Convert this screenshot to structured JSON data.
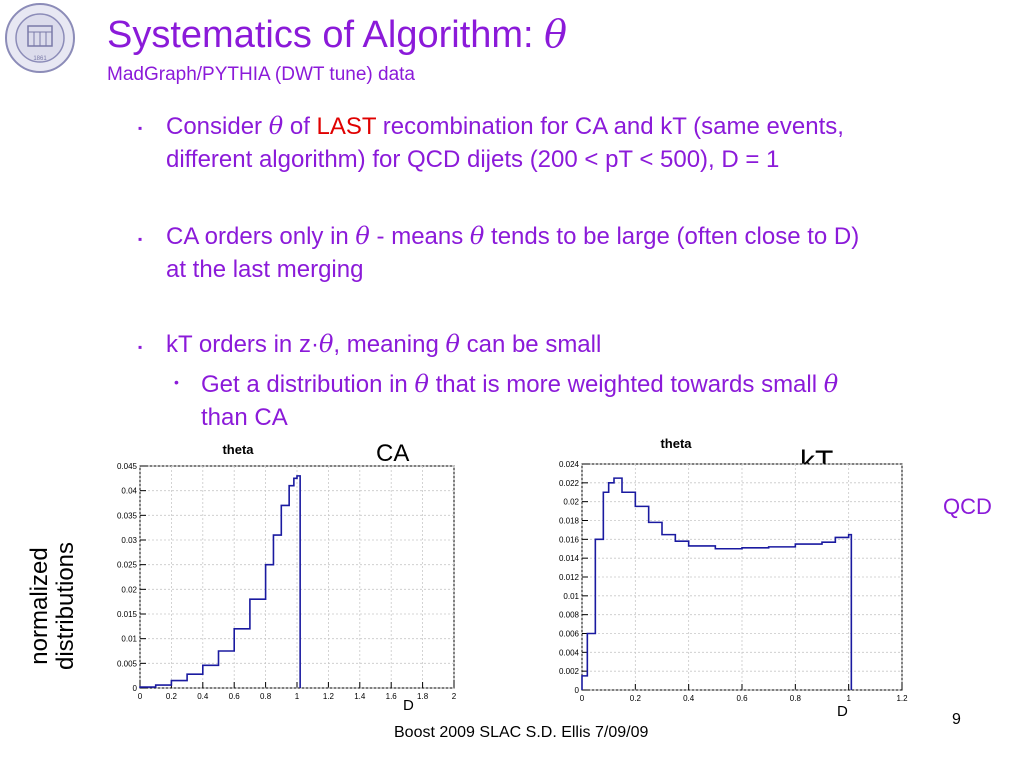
{
  "slide": {
    "title_text": "Systematics of Algorithm: ",
    "title_symbol": "θ",
    "subtitle": "MadGraph/PYTHIA (DWT tune) data",
    "bullets": [
      {
        "pre": "Consider ",
        "sym": "θ",
        "mid": " of ",
        "red": "LAST",
        "post": " recombination for CA and kT (same events,",
        "line2": "different algorithm) for QCD dijets (200 < pT < 500), D = 1"
      },
      {
        "pre": "CA orders only in ",
        "sym": "θ",
        "mid": " - means ",
        "sym2": "θ",
        "post": " tends to be large (often close to D)",
        "line2": "at the last merging"
      },
      {
        "pre": "kT orders in z·",
        "sym": "θ",
        "mid": ", meaning ",
        "sym2": "θ",
        "post": " can be small"
      }
    ],
    "sub_bullet": {
      "pre": "Get a distribution in ",
      "sym": "θ",
      "mid": " that is more weighted towards small ",
      "sym2": "θ",
      "line2": "than CA"
    },
    "bullet_marker": "▪",
    "sub_marker": "•",
    "side_label": [
      "normalized",
      "distributions"
    ],
    "qcd_label": "QCD",
    "ca_label": "CA",
    "kt_label": "kT",
    "d_label": "D",
    "footer": "Boost 2009  SLAC     S.D. Ellis    7/09/09",
    "page_number": "9"
  },
  "chart_data": [
    {
      "type": "step",
      "title": "theta",
      "xlim": [
        0,
        2
      ],
      "ylim": [
        0,
        0.045
      ],
      "xticks": [
        "0",
        "0.2",
        "0.4",
        "0.6",
        "0.8",
        "1",
        "1.2",
        "1.4",
        "1.6",
        "1.8",
        "2"
      ],
      "yticks": [
        "0",
        "0.005",
        "0.01",
        "0.015",
        "0.02",
        "0.025",
        "0.03",
        "0.035",
        "0.04",
        "0.045"
      ],
      "x": [
        0,
        0.1,
        0.2,
        0.3,
        0.4,
        0.5,
        0.6,
        0.7,
        0.8,
        0.85,
        0.9,
        0.95,
        0.98,
        1.0,
        1.02
      ],
      "y": [
        0.0002,
        0.0006,
        0.0015,
        0.0028,
        0.0046,
        0.0075,
        0.012,
        0.018,
        0.025,
        0.031,
        0.037,
        0.041,
        0.0425,
        0.043,
        0
      ]
    },
    {
      "type": "step",
      "title": "theta",
      "xlim": [
        0,
        1.2
      ],
      "ylim": [
        0,
        0.024
      ],
      "xticks": [
        "0",
        "0.2",
        "0.4",
        "0.6",
        "0.8",
        "1",
        "1.2"
      ],
      "yticks": [
        "0",
        "0.002",
        "0.004",
        "0.006",
        "0.008",
        "0.01",
        "0.012",
        "0.014",
        "0.016",
        "0.018",
        "0.02",
        "0.022",
        "0.024"
      ],
      "x": [
        0,
        0.02,
        0.05,
        0.08,
        0.1,
        0.12,
        0.15,
        0.2,
        0.25,
        0.3,
        0.35,
        0.4,
        0.5,
        0.6,
        0.7,
        0.8,
        0.9,
        0.95,
        1.0,
        1.01
      ],
      "y": [
        0.0015,
        0.006,
        0.016,
        0.021,
        0.022,
        0.0225,
        0.021,
        0.0195,
        0.0178,
        0.0165,
        0.0158,
        0.0153,
        0.015,
        0.0151,
        0.0152,
        0.0155,
        0.0157,
        0.0162,
        0.0165,
        0
      ]
    }
  ]
}
